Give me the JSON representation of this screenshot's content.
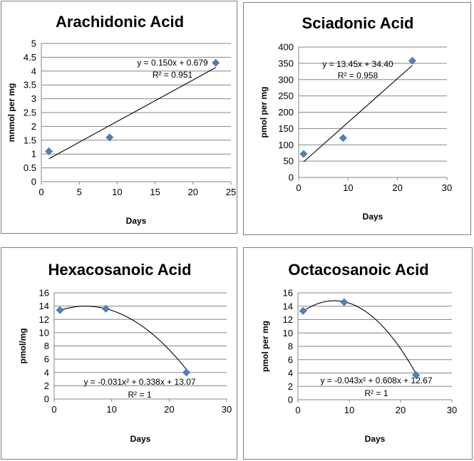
{
  "chart_data": [
    {
      "type": "scatter",
      "title": "Arachidonic Acid",
      "xlabel": "Days",
      "ylabel": "mnmol per mg",
      "xlim": [
        0,
        25
      ],
      "ylim": [
        0,
        5
      ],
      "xticks": [
        "0",
        "5",
        "10",
        "15",
        "20",
        "25"
      ],
      "yticks": [
        "0",
        "0.5",
        "1",
        "1.5",
        "2",
        "2.5",
        "3",
        "3.5",
        "4",
        "4.5",
        "5"
      ],
      "grid": "horizontal",
      "series": [
        {
          "x": [
            1,
            9,
            23
          ],
          "y": [
            1.1,
            1.6,
            4.3
          ],
          "color": "#4f81bd",
          "marker": "diamond"
        }
      ],
      "trendline": {
        "kind": "linear",
        "coef": [
          0.679,
          0.15
        ],
        "x_range": [
          1,
          23
        ]
      },
      "equation": "y = 0.150x + 0.679",
      "r2": "R² = 0.951"
    },
    {
      "type": "scatter",
      "title": "Sciadonic Acid",
      "xlabel": "Days",
      "ylabel": "pmol per mg",
      "xlim": [
        0,
        30
      ],
      "ylim": [
        0,
        400
      ],
      "xticks": [
        "0",
        "10",
        "20",
        "30"
      ],
      "yticks": [
        "0",
        "50",
        "100",
        "150",
        "200",
        "250",
        "300",
        "350",
        "400"
      ],
      "grid": "horizontal",
      "series": [
        {
          "x": [
            1,
            9,
            23
          ],
          "y": [
            72,
            121,
            358
          ],
          "color": "#4f81bd",
          "marker": "diamond"
        }
      ],
      "trendline": {
        "kind": "linear",
        "coef": [
          34.4,
          13.45
        ],
        "x_range": [
          1,
          23
        ]
      },
      "equation": "y = 13.45x + 34.40",
      "r2": "R² = 0.958"
    },
    {
      "type": "scatter",
      "title": "Hexacosanoic Acid",
      "xlabel": "Days",
      "ylabel": "pmol/mg",
      "xlim": [
        0,
        30
      ],
      "ylim": [
        0,
        16
      ],
      "xticks": [
        "0",
        "10",
        "20",
        "30"
      ],
      "yticks": [
        "0",
        "2",
        "4",
        "6",
        "8",
        "10",
        "12",
        "14",
        "16"
      ],
      "grid": "horizontal",
      "series": [
        {
          "x": [
            1,
            9,
            23
          ],
          "y": [
            13.4,
            13.6,
            4.0
          ],
          "color": "#4f81bd",
          "marker": "diamond"
        }
      ],
      "trendline": {
        "kind": "poly2",
        "coef": [
          13.07,
          0.338,
          -0.031
        ],
        "x_range": [
          1,
          23
        ]
      },
      "equation": "y = -0.031x² + 0.338x + 13.07",
      "r2": "R² = 1"
    },
    {
      "type": "scatter",
      "title": "Octacosanoic Acid",
      "xlabel": "Days",
      "ylabel": "pmol per mg",
      "xlim": [
        0,
        30
      ],
      "ylim": [
        0,
        16
      ],
      "xticks": [
        "0",
        "10",
        "20",
        "30"
      ],
      "yticks": [
        "0",
        "2",
        "4",
        "6",
        "8",
        "10",
        "12",
        "14",
        "16"
      ],
      "grid": "horizontal",
      "series": [
        {
          "x": [
            1,
            9,
            23
          ],
          "y": [
            13.3,
            14.6,
            3.7
          ],
          "color": "#4f81bd",
          "marker": "diamond"
        }
      ],
      "trendline": {
        "kind": "poly2",
        "coef": [
          12.67,
          0.608,
          -0.043
        ],
        "x_range": [
          1,
          23
        ]
      },
      "equation": "y = -0.043x² + 0.608x + 12.67",
      "r2": "R² = 1"
    }
  ]
}
